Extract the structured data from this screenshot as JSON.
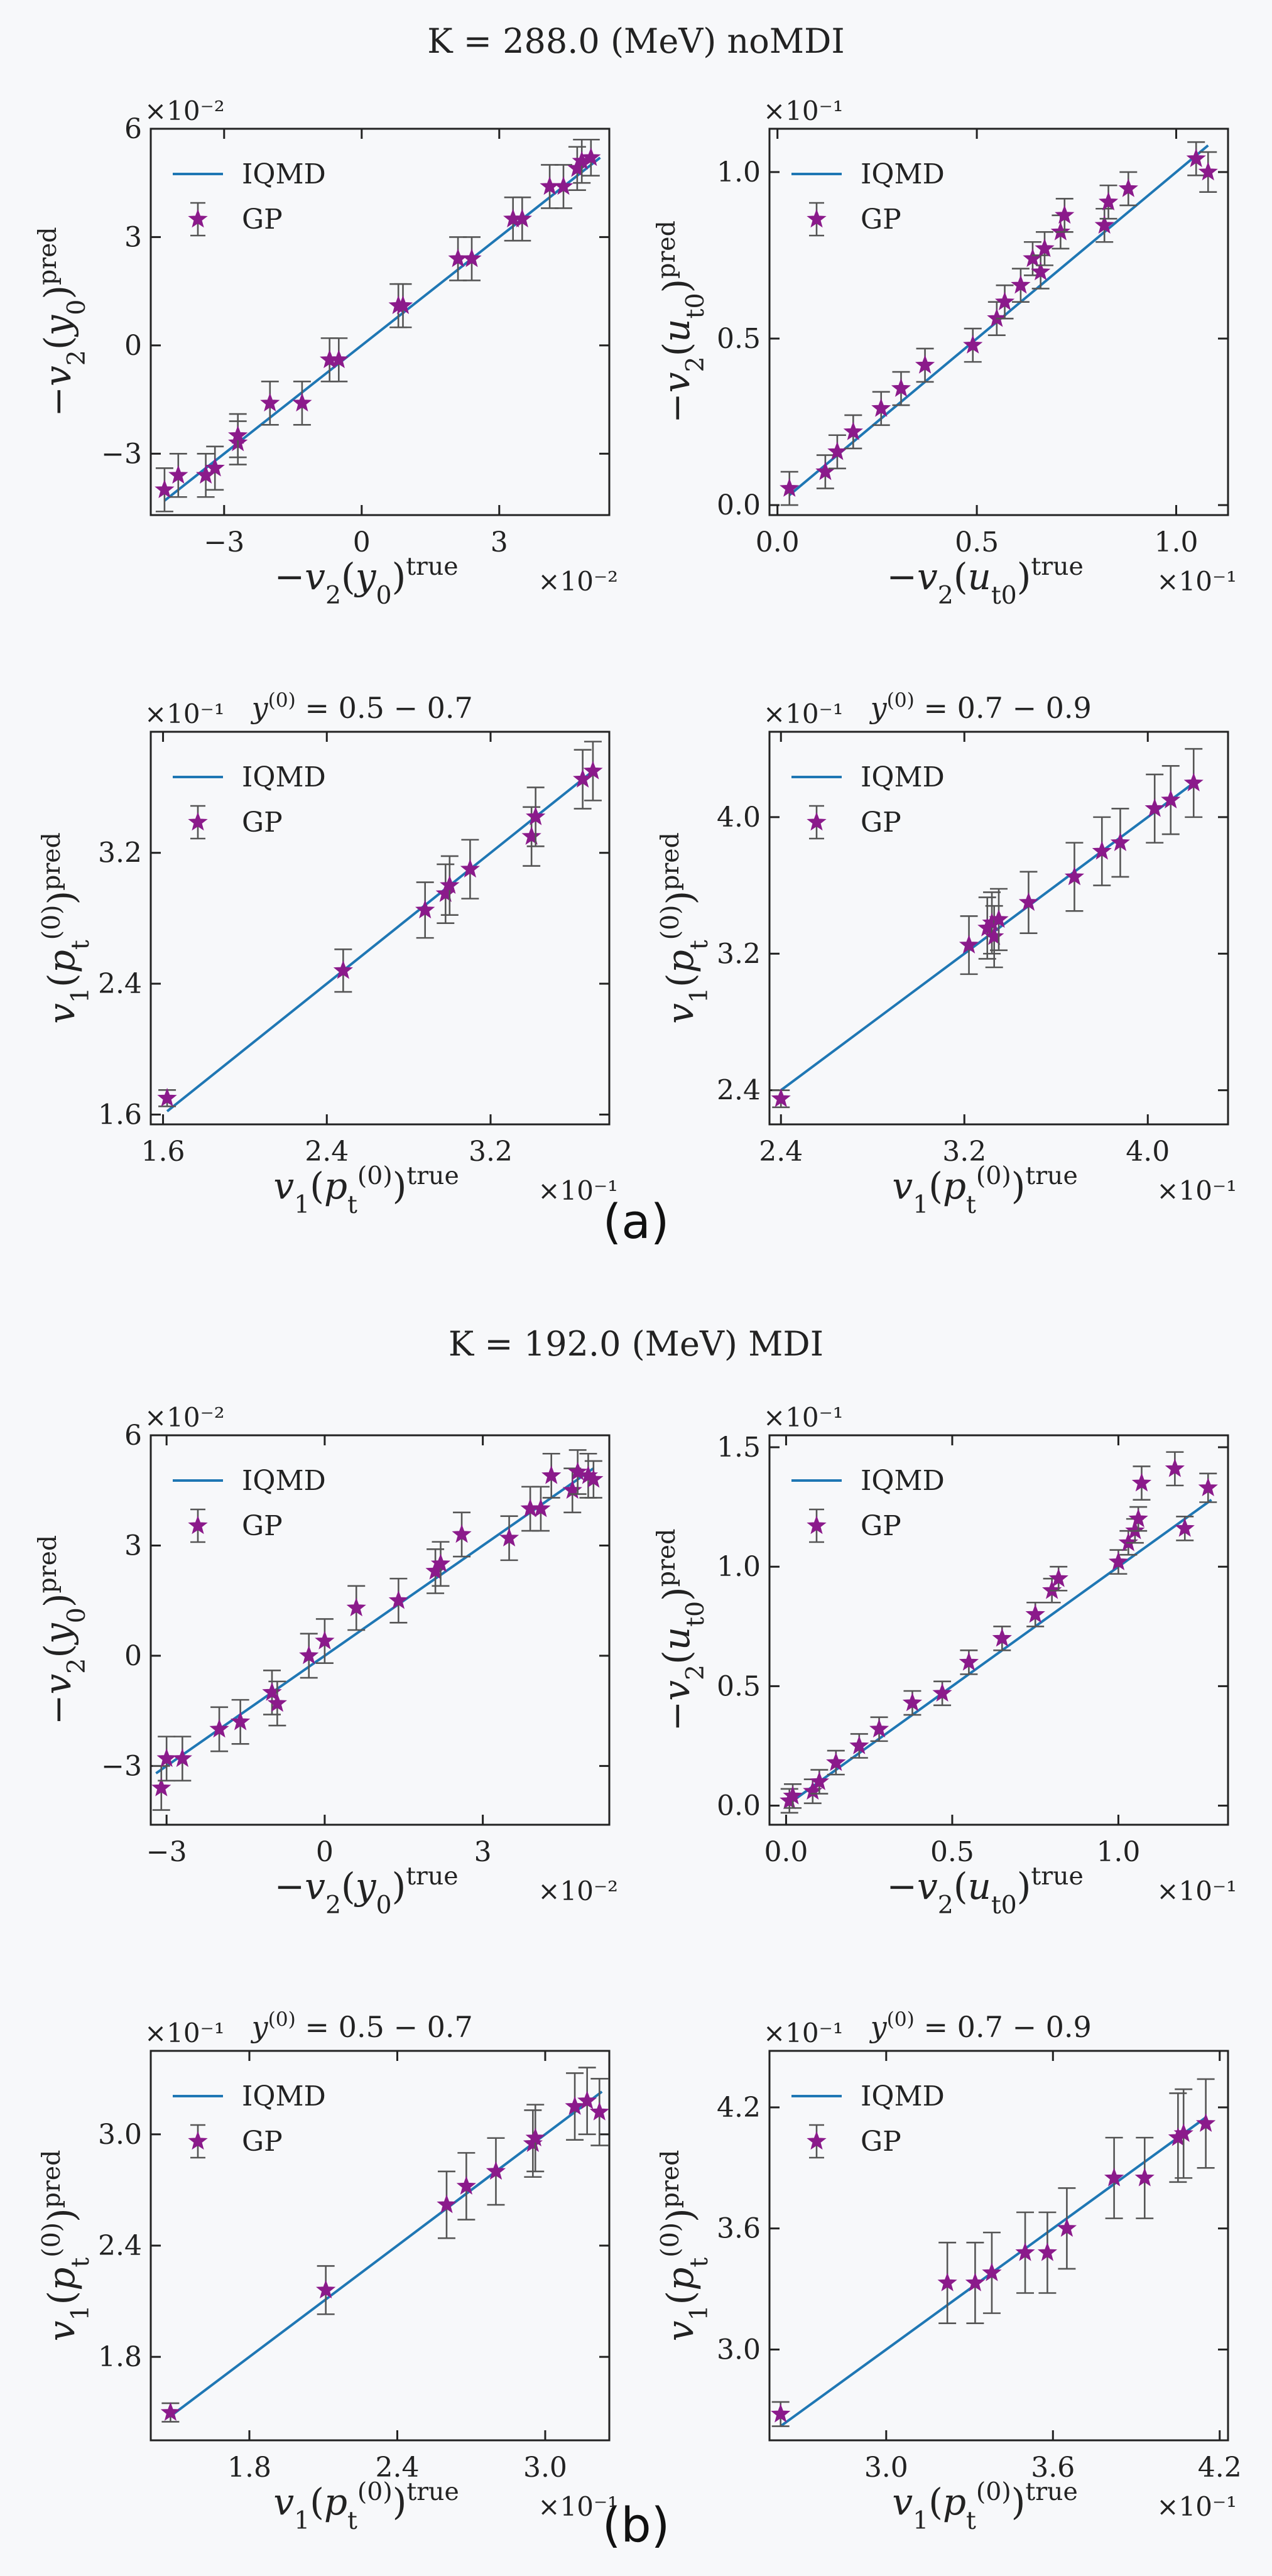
{
  "figure": {
    "panel_a_title": "K = 288.0 (MeV) noMDI",
    "panel_a_label": "(a)",
    "panel_b_title": "K = 192.0 (MeV) MDI",
    "panel_b_label": "(b)",
    "legend_line": "IQMD",
    "legend_points": "GP",
    "colors": {
      "line": "#1f77b4",
      "points": "#8b1a8b",
      "errorbar": "#555555",
      "background": "#f7f8fa"
    }
  },
  "chart_data": [
    {
      "id": "a1",
      "type": "scatter",
      "series_names": [
        "IQMD",
        "GP"
      ],
      "title": "",
      "xlabel": "−v2(y0)true",
      "ylabel": "−v2(y0)pred",
      "x_scale_label": "×10⁻²",
      "y_scale_label": "×10⁻²",
      "xlim": [
        -4.6,
        5.4
      ],
      "ylim": [
        -4.7,
        6.0
      ],
      "xticks": [
        -3,
        0,
        3
      ],
      "yticks": [
        -3,
        0,
        3,
        6
      ],
      "xtick_labels": [
        "−3",
        "0",
        "3"
      ],
      "ytick_labels": [
        "−3",
        "0",
        "3",
        "6"
      ],
      "line": [
        [
          -4.3,
          -4.3
        ],
        [
          5.2,
          5.2
        ]
      ],
      "points": [
        [
          -4.3,
          -4.0,
          0.6
        ],
        [
          -4.0,
          -3.6,
          0.6
        ],
        [
          -3.4,
          -3.6,
          0.6
        ],
        [
          -3.2,
          -3.4,
          0.6
        ],
        [
          -2.7,
          -2.7,
          0.6
        ],
        [
          -2.7,
          -2.5,
          0.6
        ],
        [
          -2.0,
          -1.6,
          0.6
        ],
        [
          -1.3,
          -1.6,
          0.6
        ],
        [
          -0.7,
          -0.4,
          0.6
        ],
        [
          -0.5,
          -0.4,
          0.6
        ],
        [
          0.8,
          1.1,
          0.6
        ],
        [
          0.9,
          1.1,
          0.6
        ],
        [
          2.1,
          2.4,
          0.6
        ],
        [
          2.4,
          2.4,
          0.6
        ],
        [
          3.3,
          3.5,
          0.6
        ],
        [
          3.5,
          3.5,
          0.6
        ],
        [
          4.1,
          4.4,
          0.6
        ],
        [
          4.4,
          4.4,
          0.6
        ],
        [
          4.7,
          4.9,
          0.6
        ],
        [
          4.8,
          5.1,
          0.6
        ],
        [
          5.0,
          5.2,
          0.5
        ]
      ]
    },
    {
      "id": "a2",
      "type": "scatter",
      "series_names": [
        "IQMD",
        "GP"
      ],
      "title": "",
      "xlabel": "−v2(ut0)true",
      "ylabel": "−v2(ut0)pred",
      "x_scale_label": "×10⁻¹",
      "y_scale_label": "×10⁻¹",
      "xlim": [
        -0.02,
        1.13
      ],
      "ylim": [
        -0.03,
        1.13
      ],
      "xticks": [
        0.0,
        0.5,
        1.0
      ],
      "yticks": [
        0.0,
        0.5,
        1.0
      ],
      "xtick_labels": [
        "0.0",
        "0.5",
        "1.0"
      ],
      "ytick_labels": [
        "0.0",
        "0.5",
        "1.0"
      ],
      "line": [
        [
          0.03,
          0.03
        ],
        [
          1.08,
          1.08
        ]
      ],
      "points": [
        [
          0.03,
          0.05,
          0.05
        ],
        [
          0.12,
          0.1,
          0.05
        ],
        [
          0.15,
          0.16,
          0.05
        ],
        [
          0.19,
          0.22,
          0.05
        ],
        [
          0.26,
          0.29,
          0.05
        ],
        [
          0.31,
          0.35,
          0.05
        ],
        [
          0.37,
          0.42,
          0.05
        ],
        [
          0.49,
          0.48,
          0.05
        ],
        [
          0.55,
          0.56,
          0.05
        ],
        [
          0.57,
          0.61,
          0.05
        ],
        [
          0.61,
          0.66,
          0.05
        ],
        [
          0.64,
          0.74,
          0.05
        ],
        [
          0.66,
          0.7,
          0.05
        ],
        [
          0.67,
          0.77,
          0.05
        ],
        [
          0.71,
          0.82,
          0.05
        ],
        [
          0.72,
          0.87,
          0.05
        ],
        [
          0.82,
          0.84,
          0.05
        ],
        [
          0.83,
          0.91,
          0.05
        ],
        [
          0.88,
          0.95,
          0.05
        ],
        [
          1.05,
          1.04,
          0.05
        ],
        [
          1.08,
          1.0,
          0.06
        ]
      ]
    },
    {
      "id": "a3",
      "type": "scatter",
      "series_names": [
        "IQMD",
        "GP"
      ],
      "title": "y(0) = 0.5 − 0.7",
      "xlabel": "v1(pt(0))true",
      "ylabel": "v1(pt(0))pred",
      "x_scale_label": "×10⁻¹",
      "y_scale_label": "×10⁻¹",
      "xlim": [
        1.54,
        3.78
      ],
      "ylim": [
        1.54,
        3.94
      ],
      "xticks": [
        1.6,
        2.4,
        3.2
      ],
      "yticks": [
        1.6,
        2.4,
        3.2
      ],
      "xtick_labels": [
        "1.6",
        "2.4",
        "3.2"
      ],
      "ytick_labels": [
        "1.6",
        "2.4",
        "3.2"
      ],
      "line": [
        [
          1.62,
          1.62
        ],
        [
          3.7,
          3.7
        ]
      ],
      "points": [
        [
          1.62,
          1.7,
          0.05
        ],
        [
          2.48,
          2.48,
          0.13
        ],
        [
          2.88,
          2.85,
          0.17
        ],
        [
          2.98,
          2.95,
          0.18
        ],
        [
          3.0,
          3.0,
          0.18
        ],
        [
          3.1,
          3.1,
          0.18
        ],
        [
          3.4,
          3.3,
          0.18
        ],
        [
          3.42,
          3.42,
          0.18
        ],
        [
          3.65,
          3.65,
          0.18
        ],
        [
          3.7,
          3.7,
          0.18
        ]
      ]
    },
    {
      "id": "a4",
      "type": "scatter",
      "series_names": [
        "IQMD",
        "GP"
      ],
      "title": "y(0) = 0.7 − 0.9",
      "xlabel": "v1(pt(0))true",
      "ylabel": "v1(pt(0))pred",
      "x_scale_label": "×10⁻¹",
      "y_scale_label": "×10⁻¹",
      "xlim": [
        2.35,
        4.35
      ],
      "ylim": [
        2.2,
        4.5
      ],
      "xticks": [
        2.4,
        3.2,
        4.0
      ],
      "yticks": [
        2.4,
        3.2,
        4.0
      ],
      "xtick_labels": [
        "2.4",
        "3.2",
        "4.0"
      ],
      "ytick_labels": [
        "2.4",
        "3.2",
        "4.0"
      ],
      "line": [
        [
          2.4,
          2.4
        ],
        [
          4.2,
          4.2
        ]
      ],
      "points": [
        [
          2.4,
          2.35,
          0.05
        ],
        [
          3.22,
          3.25,
          0.17
        ],
        [
          3.3,
          3.35,
          0.18
        ],
        [
          3.32,
          3.38,
          0.18
        ],
        [
          3.33,
          3.3,
          0.18
        ],
        [
          3.35,
          3.4,
          0.18
        ],
        [
          3.48,
          3.5,
          0.18
        ],
        [
          3.68,
          3.65,
          0.2
        ],
        [
          3.8,
          3.8,
          0.2
        ],
        [
          3.88,
          3.85,
          0.2
        ],
        [
          4.03,
          4.05,
          0.2
        ],
        [
          4.1,
          4.1,
          0.2
        ],
        [
          4.2,
          4.2,
          0.2
        ]
      ]
    },
    {
      "id": "b1",
      "type": "scatter",
      "series_names": [
        "IQMD",
        "GP"
      ],
      "title": "",
      "xlabel": "−v2(y0)true",
      "ylabel": "−v2(y0)pred",
      "x_scale_label": "×10⁻²",
      "y_scale_label": "×10⁻²",
      "xlim": [
        -3.3,
        5.4
      ],
      "ylim": [
        -4.6,
        6.0
      ],
      "xticks": [
        -3,
        0,
        3
      ],
      "yticks": [
        -3,
        0,
        3,
        6
      ],
      "xtick_labels": [
        "−3",
        "0",
        "3"
      ],
      "ytick_labels": [
        "−3",
        "0",
        "3",
        "6"
      ],
      "line": [
        [
          -3.2,
          -3.2
        ],
        [
          5.1,
          5.1
        ]
      ],
      "points": [
        [
          -3.1,
          -3.6,
          0.6
        ],
        [
          -3.0,
          -2.8,
          0.6
        ],
        [
          -2.7,
          -2.8,
          0.6
        ],
        [
          -2.0,
          -2.0,
          0.6
        ],
        [
          -1.6,
          -1.8,
          0.6
        ],
        [
          -1.0,
          -1.0,
          0.6
        ],
        [
          -0.9,
          -1.3,
          0.6
        ],
        [
          -0.3,
          0.0,
          0.6
        ],
        [
          0.0,
          0.4,
          0.6
        ],
        [
          0.6,
          1.3,
          0.6
        ],
        [
          1.4,
          1.5,
          0.6
        ],
        [
          2.1,
          2.3,
          0.6
        ],
        [
          2.2,
          2.5,
          0.6
        ],
        [
          2.6,
          3.3,
          0.6
        ],
        [
          3.5,
          3.2,
          0.6
        ],
        [
          3.9,
          4.0,
          0.6
        ],
        [
          4.1,
          4.0,
          0.6
        ],
        [
          4.3,
          4.9,
          0.6
        ],
        [
          4.7,
          4.5,
          0.6
        ],
        [
          4.8,
          5.0,
          0.6
        ],
        [
          5.0,
          4.9,
          0.6
        ],
        [
          5.1,
          4.8,
          0.5
        ]
      ]
    },
    {
      "id": "b2",
      "type": "scatter",
      "series_names": [
        "IQMD",
        "GP"
      ],
      "title": "",
      "xlabel": "−v2(ut0)true",
      "ylabel": "−v2(ut0)pred",
      "x_scale_label": "×10⁻¹",
      "y_scale_label": "×10⁻¹",
      "xlim": [
        -0.05,
        1.33
      ],
      "ylim": [
        -0.08,
        1.55
      ],
      "xticks": [
        0.0,
        0.5,
        1.0
      ],
      "yticks": [
        0.0,
        0.5,
        1.0,
        1.5
      ],
      "xtick_labels": [
        "0.0",
        "0.5",
        "1.0"
      ],
      "ytick_labels": [
        "0.0",
        "0.5",
        "1.0",
        "1.5"
      ],
      "line": [
        [
          0.0,
          0.0
        ],
        [
          1.28,
          1.28
        ]
      ],
      "points": [
        [
          0.01,
          0.02,
          0.05
        ],
        [
          0.02,
          0.04,
          0.05
        ],
        [
          0.08,
          0.06,
          0.05
        ],
        [
          0.1,
          0.1,
          0.05
        ],
        [
          0.15,
          0.18,
          0.05
        ],
        [
          0.22,
          0.25,
          0.05
        ],
        [
          0.28,
          0.32,
          0.05
        ],
        [
          0.38,
          0.43,
          0.05
        ],
        [
          0.47,
          0.47,
          0.05
        ],
        [
          0.55,
          0.6,
          0.05
        ],
        [
          0.65,
          0.7,
          0.05
        ],
        [
          0.75,
          0.8,
          0.05
        ],
        [
          0.8,
          0.9,
          0.05
        ],
        [
          0.82,
          0.95,
          0.05
        ],
        [
          1.0,
          1.02,
          0.05
        ],
        [
          1.03,
          1.1,
          0.05
        ],
        [
          1.05,
          1.15,
          0.05
        ],
        [
          1.06,
          1.2,
          0.05
        ],
        [
          1.07,
          1.35,
          0.07
        ],
        [
          1.17,
          1.41,
          0.07
        ],
        [
          1.2,
          1.16,
          0.05
        ],
        [
          1.27,
          1.33,
          0.06
        ]
      ]
    },
    {
      "id": "b3",
      "type": "scatter",
      "series_names": [
        "IQMD",
        "GP"
      ],
      "title": "y(0) = 0.5 − 0.7",
      "xlabel": "v1(pt(0))true",
      "ylabel": "v1(pt(0))pred",
      "x_scale_label": "×10⁻¹",
      "y_scale_label": "×10⁻¹",
      "xlim": [
        1.4,
        3.26
      ],
      "ylim": [
        1.35,
        3.45
      ],
      "xticks": [
        1.8,
        2.4,
        3.0
      ],
      "yticks": [
        1.8,
        2.4,
        3.0
      ],
      "xtick_labels": [
        "1.8",
        "2.4",
        "3.0"
      ],
      "ytick_labels": [
        "1.8",
        "2.4",
        "3.0"
      ],
      "line": [
        [
          1.48,
          1.48
        ],
        [
          3.23,
          3.23
        ]
      ],
      "points": [
        [
          1.48,
          1.5,
          0.05
        ],
        [
          2.11,
          2.16,
          0.13
        ],
        [
          2.6,
          2.62,
          0.18
        ],
        [
          2.68,
          2.72,
          0.18
        ],
        [
          2.8,
          2.8,
          0.18
        ],
        [
          2.95,
          2.95,
          0.18
        ],
        [
          2.96,
          2.98,
          0.18
        ],
        [
          3.12,
          3.15,
          0.18
        ],
        [
          3.17,
          3.18,
          0.18
        ],
        [
          3.22,
          3.12,
          0.18
        ]
      ]
    },
    {
      "id": "b4",
      "type": "scatter",
      "series_names": [
        "IQMD",
        "GP"
      ],
      "title": "y(0) = 0.7 − 0.9",
      "xlabel": "v1(pt(0))true",
      "ylabel": "v1(pt(0))pred",
      "x_scale_label": "×10⁻¹",
      "y_scale_label": "×10⁻¹",
      "xlim": [
        2.58,
        4.23
      ],
      "ylim": [
        2.55,
        4.48
      ],
      "xticks": [
        3.0,
        3.6,
        4.2
      ],
      "yticks": [
        3.0,
        3.6,
        4.2
      ],
      "xtick_labels": [
        "3.0",
        "3.6",
        "4.2"
      ],
      "ytick_labels": [
        "3.0",
        "3.6",
        "4.2"
      ],
      "line": [
        [
          2.62,
          2.62
        ],
        [
          4.15,
          4.15
        ]
      ],
      "points": [
        [
          2.62,
          2.68,
          0.06
        ],
        [
          3.22,
          3.33,
          0.2
        ],
        [
          3.32,
          3.33,
          0.2
        ],
        [
          3.38,
          3.38,
          0.2
        ],
        [
          3.5,
          3.48,
          0.2
        ],
        [
          3.58,
          3.48,
          0.2
        ],
        [
          3.65,
          3.6,
          0.2
        ],
        [
          3.82,
          3.85,
          0.2
        ],
        [
          3.93,
          3.85,
          0.2
        ],
        [
          4.05,
          4.05,
          0.22
        ],
        [
          4.07,
          4.07,
          0.22
        ],
        [
          4.15,
          4.12,
          0.22
        ]
      ]
    }
  ]
}
